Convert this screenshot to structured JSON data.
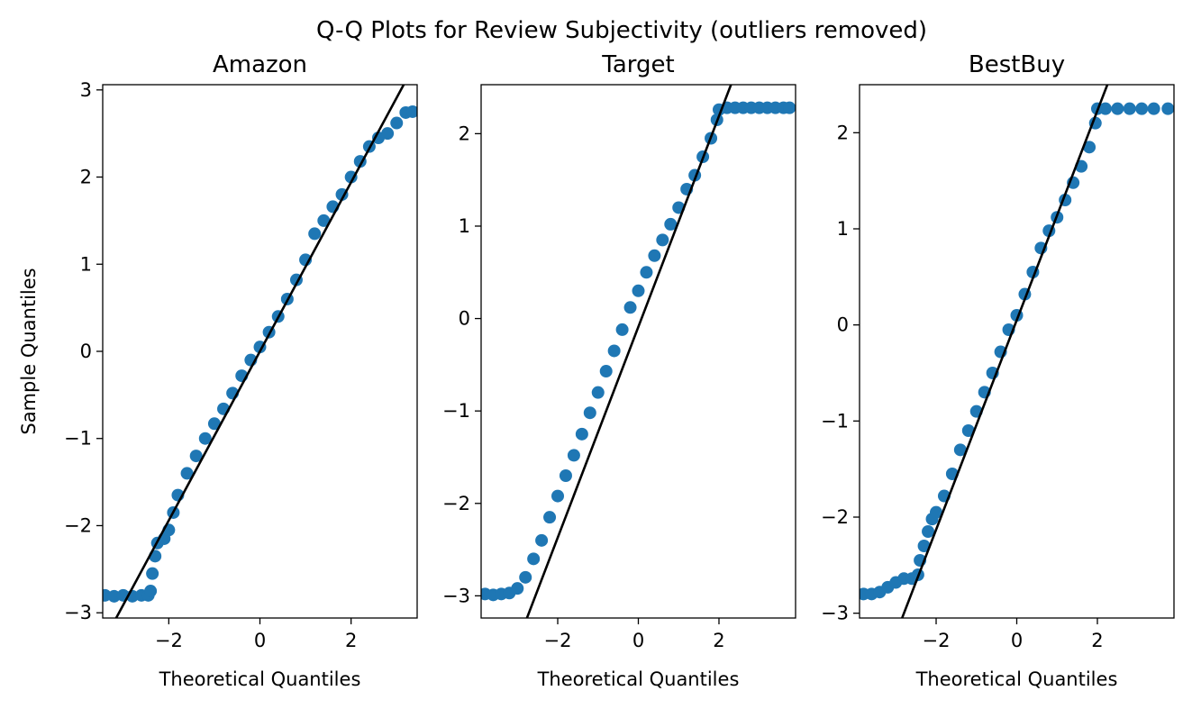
{
  "figure": {
    "title": "Q-Q Plots for Review Subjectivity (outliers removed)",
    "ylabel": "Sample Quantiles",
    "xlabel": "Theoretical Quantiles",
    "marker_color": "#1f77b4",
    "line_color": "#000000"
  },
  "chart_data": [
    {
      "type": "scatter",
      "title": "Amazon",
      "xlabel": "Theoretical Quantiles",
      "ylabel": "Sample Quantiles",
      "xlim": [
        -3.45,
        3.45
      ],
      "ylim": [
        -3.06,
        3.06
      ],
      "xticks": [
        -2,
        0,
        2
      ],
      "yticks": [
        -3,
        -2,
        -1,
        0,
        1,
        2,
        3
      ],
      "line": {
        "slope": 0.97,
        "intercept": 0.0
      },
      "points": [
        [
          -3.4,
          -2.8
        ],
        [
          -3.2,
          -2.81
        ],
        [
          -3.0,
          -2.8
        ],
        [
          -2.8,
          -2.81
        ],
        [
          -2.6,
          -2.8
        ],
        [
          -2.45,
          -2.8
        ],
        [
          -2.4,
          -2.75
        ],
        [
          -2.36,
          -2.55
        ],
        [
          -2.3,
          -2.35
        ],
        [
          -2.25,
          -2.2
        ],
        [
          -2.1,
          -2.15
        ],
        [
          -2.0,
          -2.05
        ],
        [
          -1.9,
          -1.85
        ],
        [
          -1.8,
          -1.65
        ],
        [
          -1.6,
          -1.4
        ],
        [
          -1.4,
          -1.2
        ],
        [
          -1.2,
          -1.0
        ],
        [
          -1.0,
          -0.83
        ],
        [
          -0.8,
          -0.66
        ],
        [
          -0.6,
          -0.48
        ],
        [
          -0.4,
          -0.28
        ],
        [
          -0.2,
          -0.1
        ],
        [
          0.0,
          0.05
        ],
        [
          0.2,
          0.22
        ],
        [
          0.4,
          0.4
        ],
        [
          0.6,
          0.6
        ],
        [
          0.8,
          0.82
        ],
        [
          1.0,
          1.05
        ],
        [
          1.2,
          1.35
        ],
        [
          1.4,
          1.5
        ],
        [
          1.6,
          1.66
        ],
        [
          1.8,
          1.8
        ],
        [
          2.0,
          2.0
        ],
        [
          2.2,
          2.18
        ],
        [
          2.4,
          2.35
        ],
        [
          2.6,
          2.45
        ],
        [
          2.8,
          2.5
        ],
        [
          3.0,
          2.62
        ],
        [
          3.2,
          2.74
        ],
        [
          3.35,
          2.75
        ]
      ]
    },
    {
      "type": "scatter",
      "title": "Target",
      "xlabel": "Theoretical Quantiles",
      "ylabel": "",
      "xlim": [
        -3.9,
        3.9
      ],
      "ylim": [
        -3.24,
        2.53
      ],
      "xticks": [
        -2,
        0,
        2
      ],
      "yticks": [
        -3,
        -2,
        -1,
        0,
        1,
        2
      ],
      "line": {
        "slope": 1.14,
        "intercept": -0.09
      },
      "points": [
        [
          -3.8,
          -2.98
        ],
        [
          -3.6,
          -2.99
        ],
        [
          -3.4,
          -2.98
        ],
        [
          -3.2,
          -2.97
        ],
        [
          -3.0,
          -2.92
        ],
        [
          -2.8,
          -2.8
        ],
        [
          -2.6,
          -2.6
        ],
        [
          -2.4,
          -2.4
        ],
        [
          -2.2,
          -2.15
        ],
        [
          -2.0,
          -1.92
        ],
        [
          -1.8,
          -1.7
        ],
        [
          -1.6,
          -1.48
        ],
        [
          -1.4,
          -1.25
        ],
        [
          -1.2,
          -1.02
        ],
        [
          -1.0,
          -0.8
        ],
        [
          -0.8,
          -0.57
        ],
        [
          -0.6,
          -0.35
        ],
        [
          -0.4,
          -0.12
        ],
        [
          -0.2,
          0.12
        ],
        [
          0.0,
          0.3
        ],
        [
          0.2,
          0.5
        ],
        [
          0.4,
          0.68
        ],
        [
          0.6,
          0.85
        ],
        [
          0.8,
          1.02
        ],
        [
          1.0,
          1.2
        ],
        [
          1.2,
          1.4
        ],
        [
          1.4,
          1.55
        ],
        [
          1.6,
          1.75
        ],
        [
          1.8,
          1.95
        ],
        [
          1.95,
          2.15
        ],
        [
          2.0,
          2.26
        ],
        [
          2.2,
          2.28
        ],
        [
          2.4,
          2.28
        ],
        [
          2.6,
          2.28
        ],
        [
          2.8,
          2.28
        ],
        [
          3.0,
          2.28
        ],
        [
          3.2,
          2.28
        ],
        [
          3.4,
          2.28
        ],
        [
          3.6,
          2.28
        ],
        [
          3.75,
          2.28
        ]
      ]
    },
    {
      "type": "scatter",
      "title": "BestBuy",
      "xlabel": "Theoretical Quantiles",
      "ylabel": "",
      "xlim": [
        -3.9,
        3.9
      ],
      "ylim": [
        -3.05,
        2.5
      ],
      "xticks": [
        -2,
        0,
        2
      ],
      "yticks": [
        -3,
        -2,
        -1,
        0,
        1,
        2
      ],
      "line": {
        "slope": 1.09,
        "intercept": 0.05
      },
      "points": [
        [
          -3.8,
          -2.8
        ],
        [
          -3.6,
          -2.8
        ],
        [
          -3.4,
          -2.78
        ],
        [
          -3.2,
          -2.73
        ],
        [
          -3.0,
          -2.68
        ],
        [
          -2.8,
          -2.64
        ],
        [
          -2.6,
          -2.64
        ],
        [
          -2.45,
          -2.6
        ],
        [
          -2.4,
          -2.45
        ],
        [
          -2.3,
          -2.3
        ],
        [
          -2.2,
          -2.15
        ],
        [
          -2.1,
          -2.02
        ],
        [
          -2.0,
          -1.95
        ],
        [
          -1.8,
          -1.78
        ],
        [
          -1.6,
          -1.55
        ],
        [
          -1.4,
          -1.3
        ],
        [
          -1.2,
          -1.1
        ],
        [
          -1.0,
          -0.9
        ],
        [
          -0.8,
          -0.7
        ],
        [
          -0.6,
          -0.5
        ],
        [
          -0.4,
          -0.28
        ],
        [
          -0.2,
          -0.05
        ],
        [
          0.0,
          0.1
        ],
        [
          0.2,
          0.32
        ],
        [
          0.4,
          0.55
        ],
        [
          0.6,
          0.8
        ],
        [
          0.8,
          0.98
        ],
        [
          1.0,
          1.12
        ],
        [
          1.2,
          1.3
        ],
        [
          1.4,
          1.48
        ],
        [
          1.6,
          1.65
        ],
        [
          1.8,
          1.85
        ],
        [
          1.95,
          2.1
        ],
        [
          2.0,
          2.25
        ],
        [
          2.2,
          2.25
        ],
        [
          2.5,
          2.25
        ],
        [
          2.8,
          2.25
        ],
        [
          3.1,
          2.25
        ],
        [
          3.4,
          2.25
        ],
        [
          3.75,
          2.25
        ]
      ]
    }
  ]
}
